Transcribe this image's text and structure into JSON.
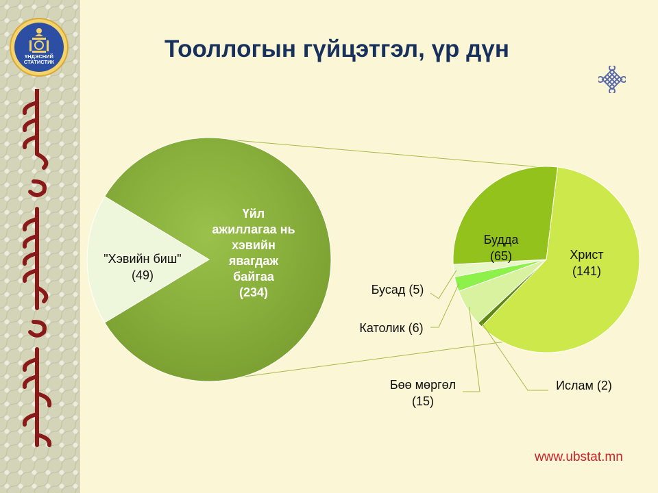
{
  "header": {
    "title": "Тооллогын гүйцэтгэл, үр дүн",
    "logo_text_line1": "ҮНДЭСНИЙ",
    "logo_text_line2": "СТАТИСТИК"
  },
  "footer": {
    "url": "www.ubstat.mn"
  },
  "colors": {
    "title": "#17305c",
    "main_pie_dark": "#86ab3a",
    "main_pie_light": "#eef6dc",
    "christian": "#cce84a",
    "buddhist": "#93c21c",
    "islam": "#5e8a12",
    "shamanism": "#d8f2a0",
    "catholic": "#8ef04a",
    "other": "#e9f6c8",
    "url": "#d0202a"
  },
  "chart_data": [
    {
      "type": "pie",
      "title": "",
      "slices": [
        {
          "label_lines": [
            "Үйл",
            "ажиллагаа нь",
            "хэвийн",
            "явагдаж",
            "байгаа"
          ],
          "value_text": "(234)",
          "value": 234
        },
        {
          "label_lines": [
            "\"Хэвийн биш\""
          ],
          "value_text": "(49)",
          "value": 49
        }
      ]
    },
    {
      "type": "pie",
      "title": "",
      "slices": [
        {
          "label_lines": [
            "Христ"
          ],
          "value_text": "(141)",
          "value": 141
        },
        {
          "label_lines": [
            "Ислам (2)"
          ],
          "value_text": "",
          "value": 2
        },
        {
          "label_lines": [
            "Бөө мөргөл"
          ],
          "value_text": "(15)",
          "value": 15
        },
        {
          "label_lines": [
            "Католик (6)"
          ],
          "value_text": "",
          "value": 6
        },
        {
          "label_lines": [
            "Бусад (5)"
          ],
          "value_text": "",
          "value": 5
        },
        {
          "label_lines": [
            "Будда"
          ],
          "value_text": "(65)",
          "value": 65
        }
      ]
    }
  ]
}
